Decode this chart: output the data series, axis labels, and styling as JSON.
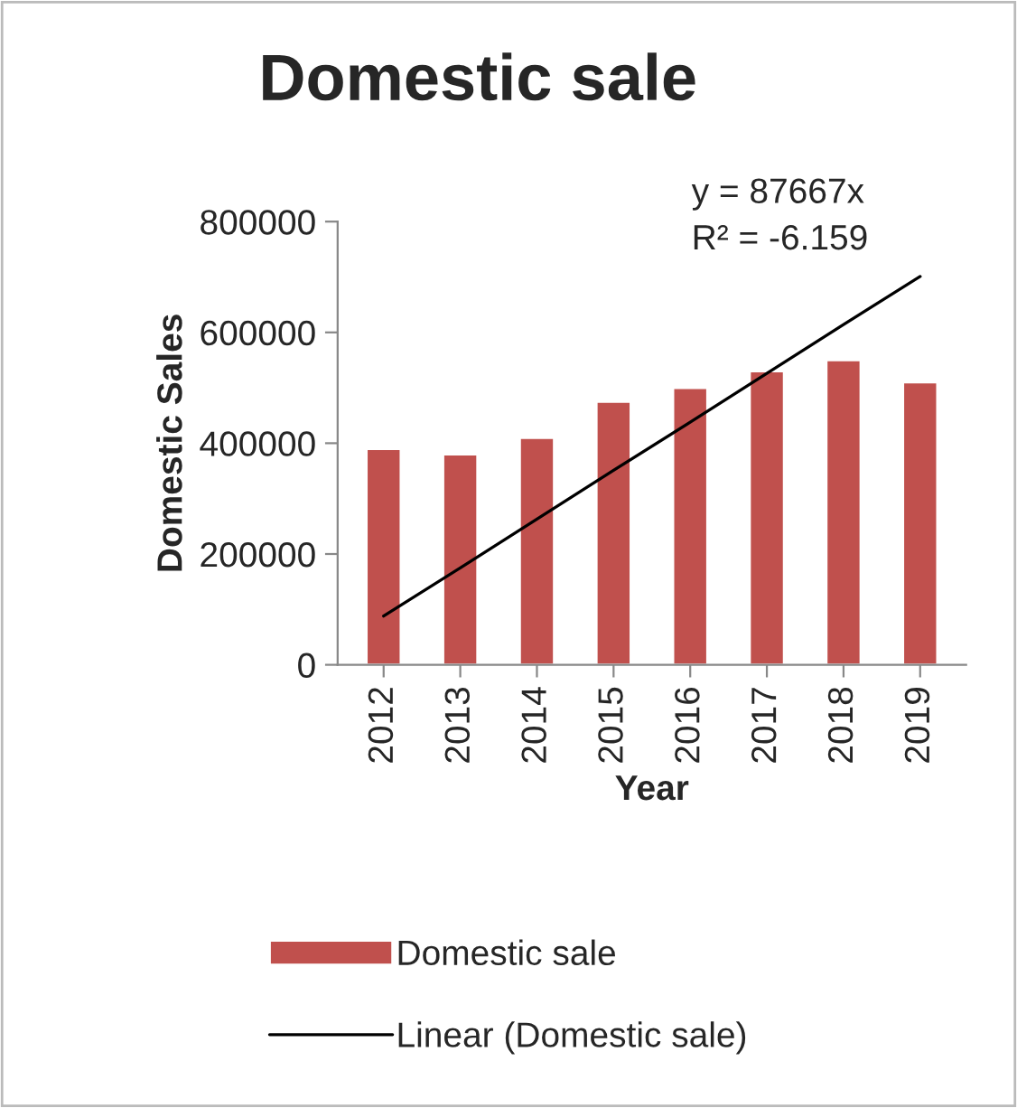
{
  "chart_data": {
    "type": "bar",
    "title": "Domestic sale",
    "xlabel": "Year",
    "ylabel": "Domestic Sales",
    "categories": [
      "2012",
      "2013",
      "2014",
      "2015",
      "2016",
      "2017",
      "2018",
      "2019"
    ],
    "series": [
      {
        "name": "Domestic sale",
        "color": "#c0504d",
        "values": [
          390000,
          380000,
          410000,
          475000,
          500000,
          530000,
          550000,
          510000
        ]
      },
      {
        "name": "Linear (Domestic sale)",
        "type": "line",
        "color": "#000000",
        "values": [
          88000,
          175000,
          263000,
          351000,
          438000,
          526000,
          614000,
          701000
        ]
      }
    ],
    "annotations": [
      "y = 87667x",
      "R² = -6.159"
    ],
    "ylim": [
      0,
      800000
    ],
    "yticks": [
      0,
      200000,
      400000,
      600000,
      800000
    ],
    "grid": false,
    "legend": "bottom"
  }
}
